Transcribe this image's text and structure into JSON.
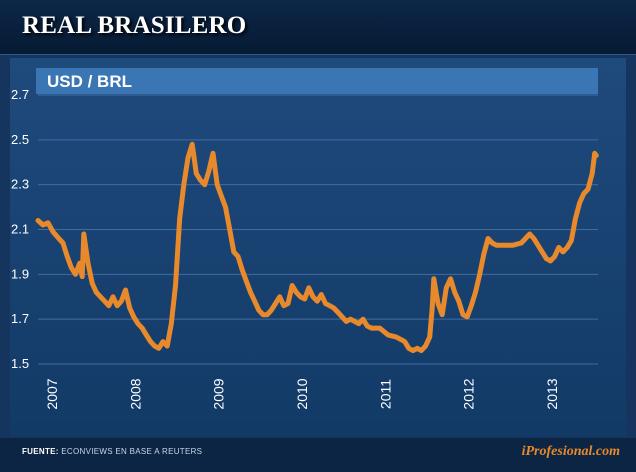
{
  "header": {
    "title": "REAL BRASILERO"
  },
  "footer": {
    "source_label": "FUENTE:",
    "source_text": "ECONVIEWS EN BASE A REUTERS",
    "brand": "iProfesional.com"
  },
  "colors": {
    "line": "#e8892b",
    "background": "#15355f",
    "banner": "#3a76b4"
  },
  "chart_data": {
    "type": "line",
    "title": "USD / BRL",
    "xlabel": "",
    "ylabel": "",
    "xlim": [
      2007.0,
      2013.72
    ],
    "ylim": [
      1.5,
      2.7
    ],
    "yticks": [
      "1.5",
      "1.7",
      "1.9",
      "2.1",
      "2.3",
      "2.5",
      "2.7"
    ],
    "xticks": [
      "2007",
      "2008",
      "2009",
      "2010",
      "2011",
      "2012",
      "2013"
    ],
    "grid": true,
    "series": [
      {
        "name": "USD / BRL",
        "x": [
          2007.0,
          2007.06,
          2007.12,
          2007.18,
          2007.25,
          2007.3,
          2007.35,
          2007.4,
          2007.45,
          2007.5,
          2007.53,
          2007.55,
          2007.6,
          2007.65,
          2007.7,
          2007.75,
          2007.8,
          2007.85,
          2007.9,
          2007.95,
          2008.0,
          2008.05,
          2008.1,
          2008.15,
          2008.2,
          2008.25,
          2008.3,
          2008.35,
          2008.4,
          2008.45,
          2008.5,
          2008.55,
          2008.6,
          2008.65,
          2008.7,
          2008.75,
          2008.8,
          2008.85,
          2008.9,
          2008.95,
          2009.0,
          2009.05,
          2009.1,
          2009.15,
          2009.2,
          2009.25,
          2009.3,
          2009.35,
          2009.4,
          2009.45,
          2009.5,
          2009.55,
          2009.6,
          2009.65,
          2009.7,
          2009.75,
          2009.8,
          2009.85,
          2009.9,
          2009.95,
          2010.0,
          2010.05,
          2010.1,
          2010.15,
          2010.2,
          2010.25,
          2010.3,
          2010.35,
          2010.4,
          2010.45,
          2010.5,
          2010.55,
          2010.6,
          2010.65,
          2010.7,
          2010.75,
          2010.8,
          2010.85,
          2010.9,
          2010.95,
          2011.0,
          2011.1,
          2011.2,
          2011.3,
          2011.4,
          2011.45,
          2011.5,
          2011.55,
          2011.6,
          2011.65,
          2011.7,
          2011.73,
          2011.75,
          2011.8,
          2011.85,
          2011.9,
          2011.95,
          2012.0,
          2012.05,
          2012.1,
          2012.15,
          2012.2,
          2012.25,
          2012.3,
          2012.35,
          2012.4,
          2012.45,
          2012.5,
          2012.6,
          2012.7,
          2012.8,
          2012.9,
          2012.95,
          2013.0,
          2013.05,
          2013.1,
          2013.15,
          2013.2,
          2013.25,
          2013.3,
          2013.35,
          2013.4,
          2013.45,
          2013.5,
          2013.55,
          2013.6,
          2013.65,
          2013.68,
          2013.7
        ],
        "values": [
          2.14,
          2.12,
          2.13,
          2.09,
          2.06,
          2.04,
          1.98,
          1.93,
          1.9,
          1.95,
          1.89,
          2.08,
          1.95,
          1.86,
          1.82,
          1.8,
          1.78,
          1.76,
          1.8,
          1.76,
          1.78,
          1.83,
          1.75,
          1.71,
          1.68,
          1.66,
          1.63,
          1.6,
          1.58,
          1.57,
          1.6,
          1.58,
          1.68,
          1.85,
          2.15,
          2.3,
          2.42,
          2.48,
          2.35,
          2.32,
          2.3,
          2.36,
          2.44,
          2.3,
          2.25,
          2.2,
          2.1,
          2.0,
          1.98,
          1.92,
          1.87,
          1.82,
          1.78,
          1.74,
          1.72,
          1.72,
          1.74,
          1.77,
          1.8,
          1.76,
          1.77,
          1.85,
          1.82,
          1.8,
          1.79,
          1.84,
          1.8,
          1.78,
          1.81,
          1.77,
          1.76,
          1.75,
          1.73,
          1.71,
          1.69,
          1.7,
          1.69,
          1.68,
          1.7,
          1.67,
          1.66,
          1.66,
          1.63,
          1.62,
          1.6,
          1.57,
          1.56,
          1.57,
          1.56,
          1.58,
          1.62,
          1.75,
          1.88,
          1.77,
          1.72,
          1.84,
          1.88,
          1.82,
          1.78,
          1.72,
          1.71,
          1.76,
          1.82,
          1.9,
          1.99,
          2.06,
          2.04,
          2.03,
          2.03,
          2.03,
          2.04,
          2.08,
          2.06,
          2.03,
          2.0,
          1.97,
          1.96,
          1.98,
          2.02,
          2.0,
          2.02,
          2.05,
          2.15,
          2.22,
          2.26,
          2.28,
          2.35,
          2.44,
          2.43
        ]
      }
    ]
  }
}
